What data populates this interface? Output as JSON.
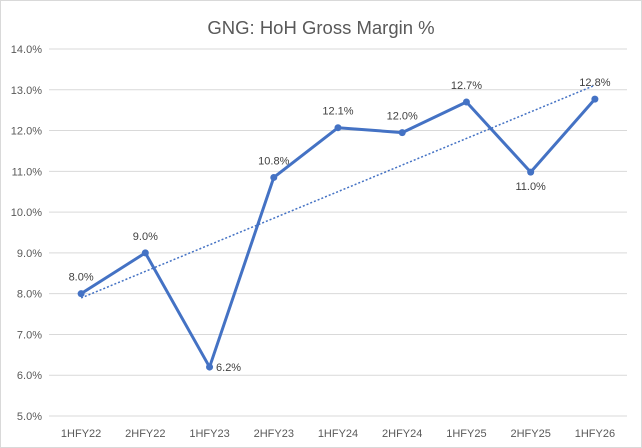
{
  "chart_data": {
    "type": "line",
    "title": "GNG: HoH Gross Margin %",
    "categories": [
      "1HFY22",
      "2HFY22",
      "1HFY23",
      "2HFY23",
      "1HFY24",
      "2HFY24",
      "1HFY25",
      "2HFY25",
      "1HFY26"
    ],
    "series": [
      {
        "values": [
          8.0,
          9.0,
          6.2,
          10.85,
          12.07,
          11.95,
          12.7,
          10.98,
          12.77
        ],
        "data_labels": [
          "8.0%",
          "9.0%",
          "6.2%",
          "10.8%",
          "12.1%",
          "12.0%",
          "12.7%",
          "11.0%",
          "12.8%"
        ],
        "color": "#4472c4"
      }
    ],
    "trendline": {
      "type": "linear",
      "style": "dotted",
      "color": "#4472c4"
    },
    "ylim": [
      5.0,
      14.0
    ],
    "yticks": [
      "5.0%",
      "6.0%",
      "7.0%",
      "8.0%",
      "9.0%",
      "10.0%",
      "11.0%",
      "12.0%",
      "13.0%",
      "14.0%"
    ],
    "xlabel": "",
    "ylabel": "",
    "grid": true,
    "legend": "none"
  }
}
